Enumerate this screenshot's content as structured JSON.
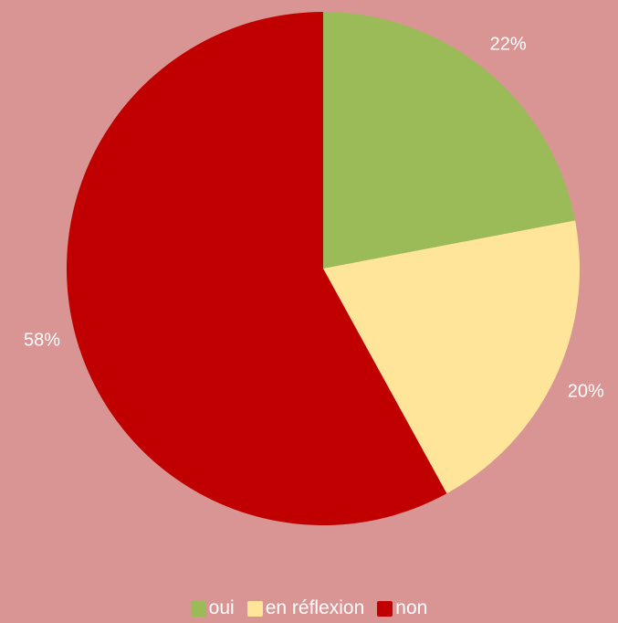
{
  "chart_data": {
    "type": "pie",
    "title": "",
    "slices": [
      {
        "label": "oui",
        "value": 22,
        "value_label": "22%",
        "color": "#9bbb59"
      },
      {
        "label": "en réflexion",
        "value": 20,
        "value_label": "20%",
        "color": "#ffe599"
      },
      {
        "label": "non",
        "value": 58,
        "value_label": "58%",
        "color": "#c00000"
      }
    ],
    "start_angle": "12 o'clock",
    "direction": "clockwise",
    "legend": {
      "placement": "bottom",
      "items": [
        "oui",
        "en réflexion",
        "non"
      ]
    }
  },
  "background_color": "#d99594",
  "label_color": "#ffffff"
}
